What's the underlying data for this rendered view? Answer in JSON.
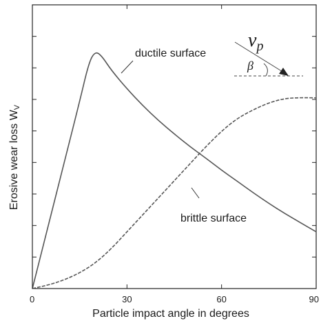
{
  "chart_data": {
    "type": "line",
    "xlabel": "Particle impact angle in degrees",
    "ylabel": "Erosive wear loss W",
    "ylabel_subscript": "V",
    "xlim": [
      0,
      90
    ],
    "ylim": [
      0,
      1
    ],
    "x_ticks": [
      0,
      30,
      60,
      90
    ],
    "x_tick_labels": [
      "0",
      "30",
      "60",
      "90"
    ],
    "y_tick_count": 8,
    "grid": false,
    "series": [
      {
        "name": "ductile surface",
        "style": "solid",
        "color": "#555555",
        "points": [
          [
            0,
            0
          ],
          [
            5,
            0.22
          ],
          [
            10,
            0.44
          ],
          [
            15,
            0.66
          ],
          [
            18,
            0.8
          ],
          [
            20,
            0.836
          ],
          [
            22,
            0.82
          ],
          [
            25,
            0.77
          ],
          [
            30,
            0.704
          ],
          [
            35,
            0.645
          ],
          [
            40,
            0.592
          ],
          [
            45,
            0.545
          ],
          [
            50,
            0.5
          ],
          [
            55,
            0.46
          ],
          [
            60,
            0.417
          ],
          [
            65,
            0.378
          ],
          [
            70,
            0.338
          ],
          [
            75,
            0.3
          ],
          [
            80,
            0.265
          ],
          [
            85,
            0.232
          ],
          [
            90,
            0.2
          ]
        ]
      },
      {
        "name": "brittle surface",
        "style": "dashed",
        "color": "#555555",
        "points": [
          [
            0,
            0
          ],
          [
            5,
            0.012
          ],
          [
            10,
            0.03
          ],
          [
            15,
            0.055
          ],
          [
            20,
            0.09
          ],
          [
            25,
            0.14
          ],
          [
            30,
            0.2
          ],
          [
            35,
            0.26
          ],
          [
            40,
            0.32
          ],
          [
            45,
            0.38
          ],
          [
            50,
            0.44
          ],
          [
            55,
            0.5
          ],
          [
            60,
            0.555
          ],
          [
            65,
            0.6
          ],
          [
            70,
            0.63
          ],
          [
            75,
            0.655
          ],
          [
            80,
            0.67
          ],
          [
            85,
            0.673
          ],
          [
            90,
            0.672
          ]
        ]
      }
    ],
    "annotations": {
      "ductile_label": "ductile surface",
      "brittle_label": "brittle surface",
      "velocity_symbol": "v",
      "velocity_subscript": "p",
      "angle_symbol": "β"
    }
  }
}
